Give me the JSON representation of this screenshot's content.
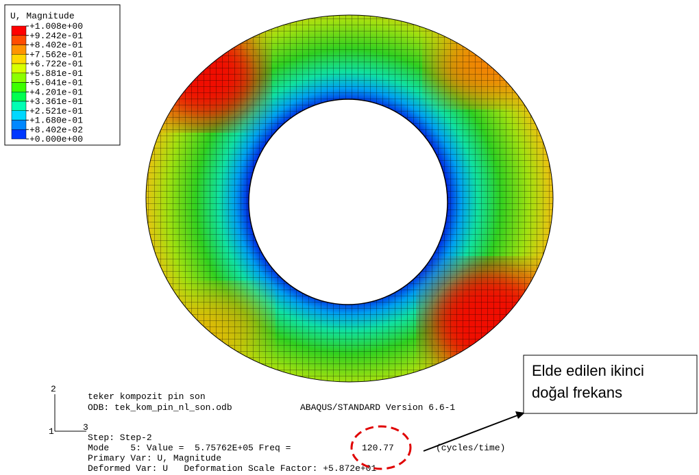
{
  "legend": {
    "title": "U, Magnitude",
    "labels": [
      "+1.008e+00",
      "+9.242e-01",
      "+8.402e-01",
      "+7.562e-01",
      "+6.722e-01",
      "+5.881e-01",
      "+5.041e-01",
      "+4.201e-01",
      "+3.361e-01",
      "+2.521e-01",
      "+1.680e-01",
      "+8.402e-02",
      "+0.000e+00"
    ],
    "colors": [
      "#ff0000",
      "#ff4c00",
      "#ff9400",
      "#ffd800",
      "#d8ff00",
      "#8cff00",
      "#3cff00",
      "#00ff50",
      "#00ffb4",
      "#00d8ff",
      "#0088ff",
      "#0038ff"
    ]
  },
  "triad": {
    "axis_2": "2",
    "axis_1": "1",
    "axis_3": "3"
  },
  "info": {
    "model": "teker kompozit pin son",
    "odb": "ODB: tek_kom_pin_nl_son.odb",
    "version": "ABAQUS/STANDARD Version 6.6-1",
    "step": "Step: Step-2",
    "mode": "Mode    5: Value =  5.75762E+05 Freq =",
    "freq": "120.77",
    "freq_unit": "(cycles/time)",
    "primary": "Primary Var: U, Magnitude",
    "deformed": "Deformed Var: U   Deformation Scale Factor: +5.872e+01"
  },
  "callout": {
    "line1": "Elde edilen ikinci",
    "line2": "doğal frekans"
  }
}
